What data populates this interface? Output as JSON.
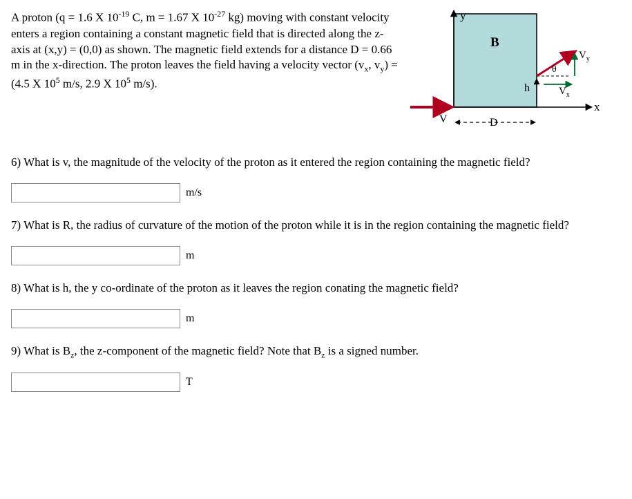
{
  "problem": {
    "html": "A proton (q = 1.6 X 10<sup>-19</sup> C, m = 1.67 X 10<sup>-27</sup> kg) moving with constant velocity enters a region containing a constant magnetic field that is directed along the z-axis at (x,y) = (0,0) as shown. The magnetic field extends for a distance D = 0.66 m in the x-direction. The proton leaves the field having a velocity vector (v<sub>x</sub>, v<sub>y</sub>) = (4.5 X 10<sup>5</sup> m/s, 2.9 X 10<sup>5</sup> m/s)."
  },
  "diagram": {
    "background": "#b4dbdb",
    "stroke": "#000000",
    "arrow_red": "#b00020",
    "arrow_black": "#000000",
    "arrow_green": "#006b2d",
    "labels": {
      "y": "y",
      "x": "x",
      "B": "B",
      "D": "D",
      "h": "h",
      "V": "V",
      "theta": "θ",
      "Vx": "V",
      "Vy": "V",
      "Vx_sub": "x",
      "Vy_sub": "y"
    }
  },
  "questions": [
    {
      "num": "6)",
      "html": "What is v, the magnitude of the velocity of the proton as it entered the region containing the magnetic field?",
      "unit": "m/s",
      "value": ""
    },
    {
      "num": "7)",
      "html": "What is R, the radius of curvature of the motion of the proton while it is in the region containing the magnetic field?",
      "unit": "m",
      "value": ""
    },
    {
      "num": "8)",
      "html": "What is h, the y co-ordinate of the proton as it leaves the region conating the magnetic field?",
      "unit": "m",
      "value": ""
    },
    {
      "num": "9)",
      "html": "What is B<sub>z</sub>, the z-component of the magnetic field? Note that B<sub>z</sub> is a signed number.",
      "unit": "T",
      "value": ""
    }
  ]
}
